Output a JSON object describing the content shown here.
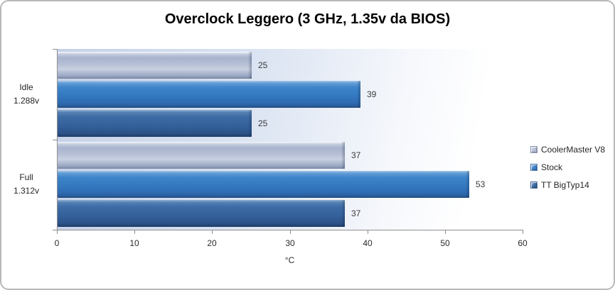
{
  "chart_data": {
    "type": "bar",
    "orientation": "horizontal",
    "title": "Overclock Leggero (3 GHz, 1.35v da BIOS)",
    "categories": [
      {
        "label": "Idle",
        "sub": "1.288v"
      },
      {
        "label": "Full",
        "sub": "1.312v"
      }
    ],
    "series": [
      {
        "name": "CoolerMaster V8",
        "values": [
          25,
          37
        ],
        "color": "#b3bdd4"
      },
      {
        "name": "Stock",
        "values": [
          39,
          53
        ],
        "color": "#3a7ec6"
      },
      {
        "name": "TT BigTyp14",
        "values": [
          25,
          37
        ],
        "color": "#35659f"
      }
    ],
    "series_display_order_top_to_bottom": [
      "CoolerMaster V8",
      "Stock",
      "TT BigTyp14"
    ],
    "data_labels": true,
    "xlabel": "°C",
    "xlim": [
      0,
      60
    ],
    "xticks": [
      0,
      10,
      20,
      30,
      40,
      50,
      60
    ],
    "grid": false,
    "legend_position": "right",
    "colors": {
      "plot_gradient_start": "#c5d1e8",
      "plot_gradient_end": "#ffffff",
      "axis": "#8f8f8f",
      "title_text": "#000000",
      "label_text": "#3a3a3a"
    }
  }
}
